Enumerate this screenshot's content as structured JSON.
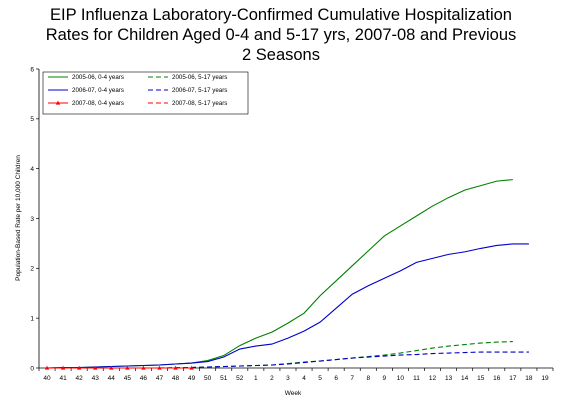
{
  "chart_data": {
    "type": "line",
    "title_lines": [
      "EIP Influenza Laboratory-Confirmed Cumulative Hospitalization",
      "Rates for Children Aged 0-4 and 5-17 yrs, 2007-08 and Previous",
      "2 Seasons"
    ],
    "xlabel": "Week",
    "ylabel": "Population-Based Rate per 10,000 Children",
    "ylim": [
      0,
      6
    ],
    "yticks": [
      "0",
      "1",
      "2",
      "3",
      "4",
      "5",
      "6"
    ],
    "categories": [
      "40",
      "41",
      "42",
      "43",
      "44",
      "45",
      "46",
      "47",
      "48",
      "49",
      "50",
      "51",
      "52",
      "1",
      "2",
      "3",
      "4",
      "5",
      "6",
      "7",
      "8",
      "9",
      "10",
      "11",
      "12",
      "13",
      "14",
      "15",
      "16",
      "17",
      "18",
      "19"
    ],
    "grid": false,
    "legend_position": "top-left",
    "series": [
      {
        "name": "2005-06, 0-4 years",
        "color": "#008000",
        "dash": "solid",
        "values": [
          0.0,
          0.01,
          0.01,
          0.02,
          0.03,
          0.04,
          0.05,
          0.06,
          0.08,
          0.1,
          0.15,
          0.25,
          0.45,
          0.6,
          0.72,
          0.9,
          1.1,
          1.45,
          1.75,
          2.05,
          2.35,
          2.65,
          2.85,
          3.05,
          3.25,
          3.42,
          3.57,
          3.66,
          3.75,
          3.78,
          null,
          null
        ]
      },
      {
        "name": "2005-06, 5-17 years",
        "color": "#008000",
        "dash": "dashed",
        "values": [
          0.0,
          0.0,
          0.0,
          0.0,
          0.0,
          0.0,
          0.0,
          0.0,
          0.01,
          0.01,
          0.02,
          0.03,
          0.04,
          0.05,
          0.06,
          0.09,
          0.12,
          0.14,
          0.17,
          0.2,
          0.23,
          0.26,
          0.3,
          0.35,
          0.4,
          0.44,
          0.47,
          0.5,
          0.52,
          0.53,
          null,
          null
        ]
      },
      {
        "name": "2006-07, 0-4 years",
        "color": "#0000CC",
        "dash": "solid",
        "values": [
          0.0,
          0.01,
          0.01,
          0.02,
          0.03,
          0.04,
          0.05,
          0.06,
          0.08,
          0.1,
          0.13,
          0.22,
          0.38,
          0.44,
          0.48,
          0.6,
          0.74,
          0.92,
          1.2,
          1.48,
          1.65,
          1.8,
          1.95,
          2.12,
          2.2,
          2.28,
          2.33,
          2.4,
          2.46,
          2.49,
          2.49,
          null
        ]
      },
      {
        "name": "2006-07, 5-17 years",
        "color": "#0000CC",
        "dash": "dashed",
        "values": [
          0.0,
          0.0,
          0.0,
          0.0,
          0.0,
          0.0,
          0.0,
          0.0,
          0.0,
          0.01,
          0.02,
          0.03,
          0.04,
          0.05,
          0.06,
          0.08,
          0.11,
          0.14,
          0.17,
          0.2,
          0.22,
          0.24,
          0.26,
          0.27,
          0.29,
          0.3,
          0.31,
          0.32,
          0.32,
          0.32,
          0.32,
          null
        ]
      },
      {
        "name": "2007-08, 0-4 years",
        "color": "#FF0000",
        "dash": "solid",
        "marker": "triangle",
        "values": [
          0.0,
          0.0,
          0.0,
          0.0,
          0.0,
          0.0,
          0.0,
          0.0,
          0.0,
          0.0,
          null,
          null,
          null,
          null,
          null,
          null,
          null,
          null,
          null,
          null,
          null,
          null,
          null,
          null,
          null,
          null,
          null,
          null,
          null,
          null,
          null,
          null
        ]
      },
      {
        "name": "2007-08, 5-17 years",
        "color": "#FF0000",
        "dash": "dashed",
        "values": [
          0.0,
          0.0,
          0.0,
          0.0,
          0.0,
          0.0,
          0.0,
          0.0,
          0.0,
          0.0,
          null,
          null,
          null,
          null,
          null,
          null,
          null,
          null,
          null,
          null,
          null,
          null,
          null,
          null,
          null,
          null,
          null,
          null,
          null,
          null,
          null,
          null
        ]
      }
    ]
  }
}
